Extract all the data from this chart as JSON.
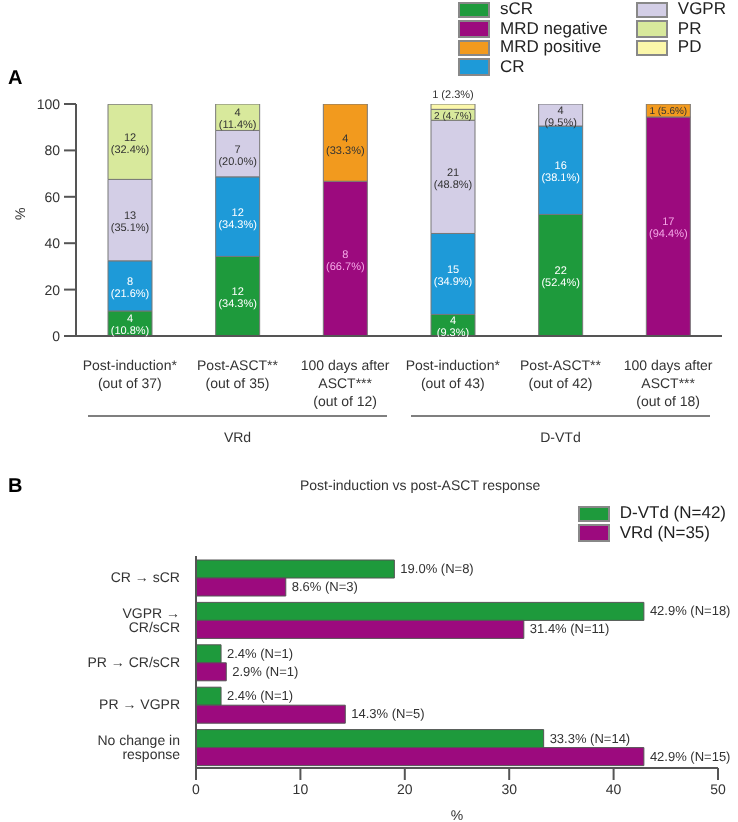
{
  "chart_data": [
    {
      "type": "bar",
      "stacked": true,
      "ylabel": "%",
      "ylim": [
        0,
        100
      ],
      "yticks": [
        0,
        20,
        40,
        60,
        80,
        100
      ],
      "legend": "top right",
      "annotations": [
        "A",
        "VRd",
        "D-VTd"
      ],
      "categories": [
        "Post-induction*\n(out of 37)",
        "Post-ASCT**\n(out of 35)",
        "100 days after\nASCT***\n(out of 12)",
        "Post-induction*\n(out of 43)",
        "Post-ASCT**\n(out of 42)",
        "100 days after\nASCT***\n(out of 18)"
      ],
      "series": [
        {
          "name": "sCR",
          "color": "#1e9a3c",
          "values": [
            10.8,
            34.3,
            null,
            9.3,
            52.4,
            null
          ],
          "value_labels": [
            "4 (10.8%)",
            "12 (34.3%)",
            null,
            "4 (9.3%)",
            "22 (52.4%)",
            null
          ]
        },
        {
          "name": "MRD negative",
          "color": "#9c0a7e",
          "values": [
            null,
            null,
            66.7,
            null,
            null,
            94.4
          ],
          "value_labels": [
            null,
            null,
            "8 (66.7%)",
            null,
            null,
            "17 (94.4%)"
          ]
        },
        {
          "name": "MRD positive",
          "color": "#f29a1e",
          "values": [
            null,
            null,
            33.3,
            null,
            null,
            5.6
          ],
          "value_labels": [
            null,
            null,
            "4 (33.3%)",
            null,
            null,
            "1 (5.6%)"
          ]
        },
        {
          "name": "CR",
          "color": "#1e9ad8",
          "values": [
            21.6,
            34.3,
            null,
            34.9,
            38.1,
            null
          ],
          "value_labels": [
            "8 (21.6%)",
            "12 (34.3%)",
            null,
            "15 (34.9%)",
            "16 (38.1%)",
            null
          ]
        },
        {
          "name": "VGPR",
          "color": "#d3cee6",
          "values": [
            35.1,
            20.0,
            null,
            48.8,
            9.5,
            null
          ],
          "value_labels": [
            "13 (35.1%)",
            "7 (20.0%)",
            null,
            "21 (48.8%)",
            "4 (9.5%)",
            null
          ]
        },
        {
          "name": "PR",
          "color": "#d8e99c",
          "values": [
            32.4,
            11.4,
            null,
            4.7,
            null,
            null
          ],
          "value_labels": [
            "12 (32.4%)",
            "4 (11.4%)",
            null,
            "2 (4.7%)",
            null,
            null
          ]
        },
        {
          "name": "PD",
          "color": "#fbf7aa",
          "values": [
            null,
            null,
            null,
            2.3,
            null,
            null
          ],
          "value_labels": [
            null,
            null,
            null,
            "1 (2.3%)",
            null,
            null
          ]
        }
      ]
    },
    {
      "type": "bar",
      "orientation": "horizontal",
      "title": "Post-induction vs post-ASCT response",
      "xlabel": "%",
      "xlim": [
        0,
        50
      ],
      "xticks": [
        0,
        10,
        20,
        30,
        40,
        50
      ],
      "legend": "top right",
      "annotations": [
        "B"
      ],
      "categories": [
        "CR → sCR",
        "VGPR → CR/sCR",
        "PR → CR/sCR",
        "PR → VGPR",
        "No change in response"
      ],
      "series": [
        {
          "name": "D-VTd (N=42)",
          "color": "#1e9a3c",
          "values": [
            19.0,
            42.9,
            2.4,
            2.4,
            33.3
          ],
          "value_labels": [
            "19.0% (N=8)",
            "42.9% (N=18)",
            "2.4% (N=1)",
            "2.4% (N=1)",
            "33.3% (N=14)"
          ]
        },
        {
          "name": "VRd (N=35)",
          "color": "#9c0a7e",
          "values": [
            8.6,
            31.4,
            2.9,
            14.3,
            42.9
          ],
          "value_labels": [
            "8.6% (N=3)",
            "31.4% (N=11)",
            "2.9% (N=1)",
            "14.3% (N=5)",
            "42.9% (N=15)"
          ]
        }
      ]
    }
  ]
}
